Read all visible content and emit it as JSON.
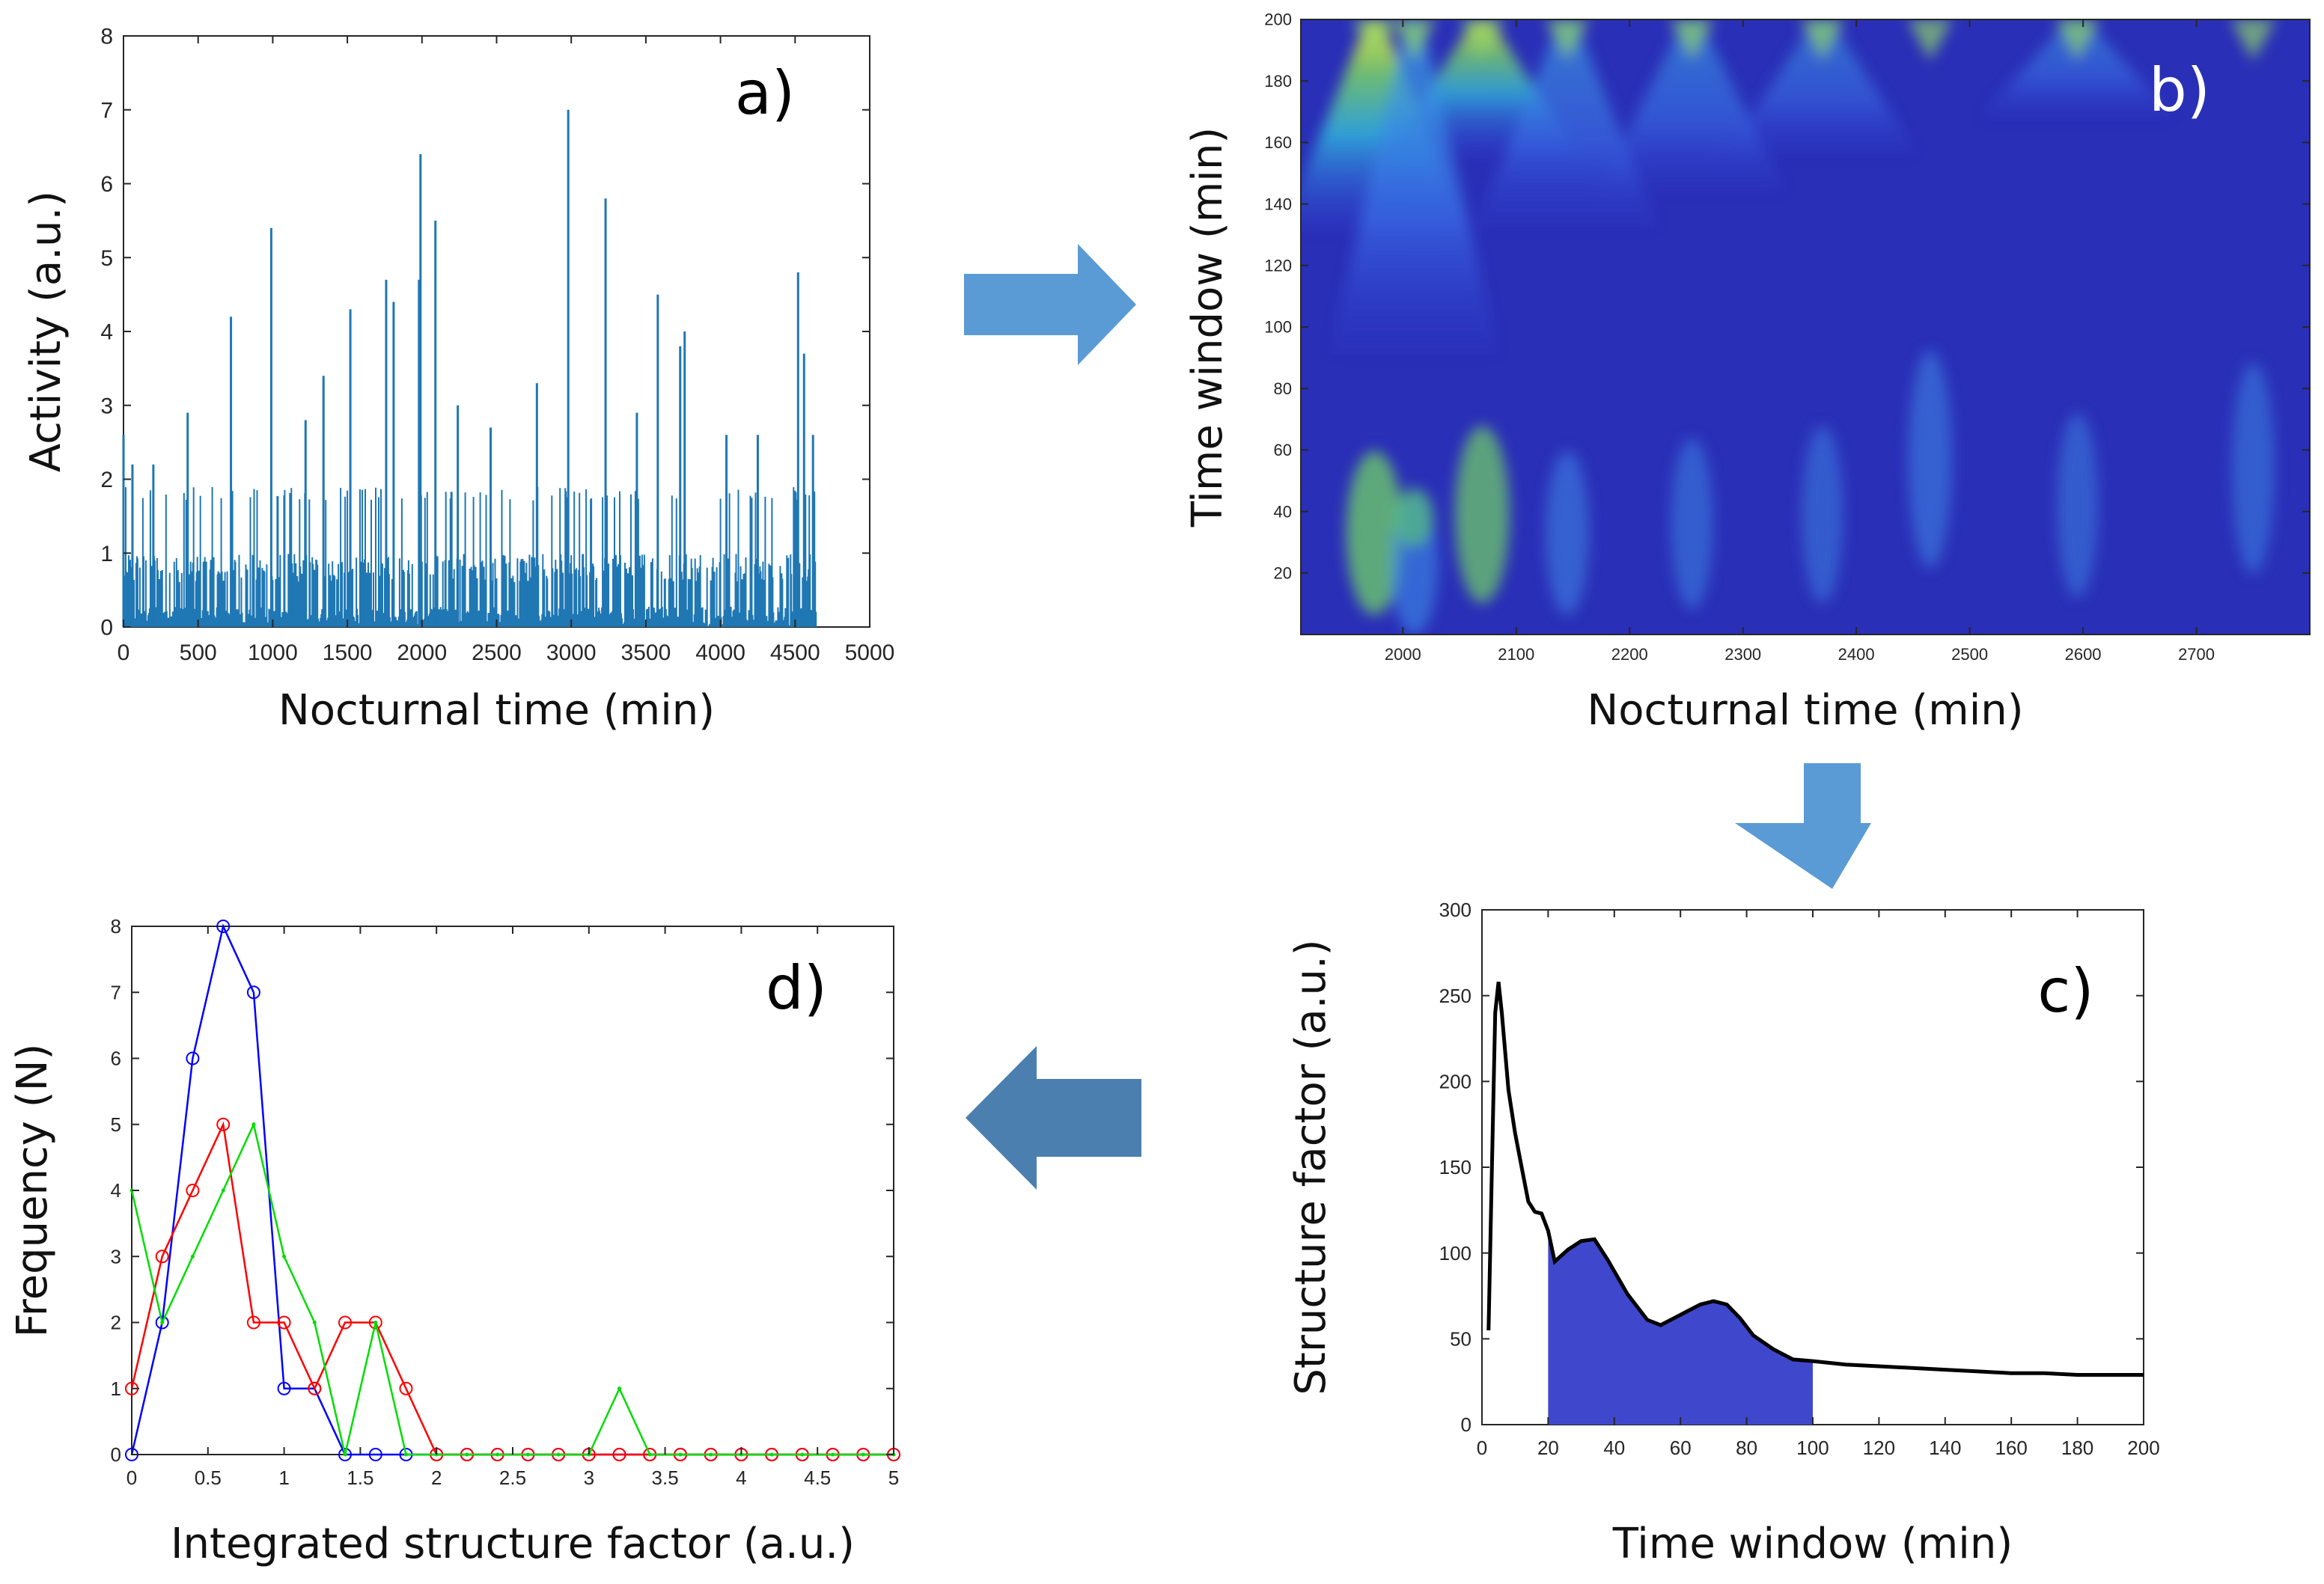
{
  "figure": {
    "arrow_color_light": "#5b9bd5",
    "arrow_color_dark": "#4a7fb0",
    "arrows": [
      {
        "name": "arrow-right-icon",
        "from": "a",
        "to": "b"
      },
      {
        "name": "arrow-down-icon",
        "from": "b",
        "to": "c"
      },
      {
        "name": "arrow-left-icon",
        "from": "c",
        "to": "d"
      }
    ]
  },
  "chart_data": [
    {
      "id": "a",
      "type": "bar",
      "panel_label": "a)",
      "title": "",
      "xlabel": "Nocturnal time (min)",
      "ylabel": "Activity (a.u.)",
      "xlim": [
        0,
        5000
      ],
      "ylim": [
        0,
        8
      ],
      "xticks": [
        0,
        500,
        1000,
        1500,
        2000,
        2500,
        3000,
        3500,
        4000,
        4500,
        5000
      ],
      "yticks": [
        0,
        1,
        2,
        3,
        4,
        5,
        6,
        7,
        8
      ],
      "color": "#1f77b4",
      "series_end": 4640,
      "peaks": [
        {
          "x": 0,
          "y": 2.6
        },
        {
          "x": 60,
          "y": 2.2
        },
        {
          "x": 200,
          "y": 2.2
        },
        {
          "x": 430,
          "y": 2.9
        },
        {
          "x": 720,
          "y": 4.2
        },
        {
          "x": 990,
          "y": 5.4
        },
        {
          "x": 1220,
          "y": 2.8
        },
        {
          "x": 1340,
          "y": 3.4
        },
        {
          "x": 1520,
          "y": 4.3
        },
        {
          "x": 1760,
          "y": 4.7
        },
        {
          "x": 1810,
          "y": 4.4
        },
        {
          "x": 1980,
          "y": 4.7
        },
        {
          "x": 1990,
          "y": 6.4
        },
        {
          "x": 2090,
          "y": 5.5
        },
        {
          "x": 2240,
          "y": 3.0
        },
        {
          "x": 2460,
          "y": 2.7
        },
        {
          "x": 2770,
          "y": 3.3
        },
        {
          "x": 2980,
          "y": 7.0
        },
        {
          "x": 3230,
          "y": 5.8
        },
        {
          "x": 3440,
          "y": 2.9
        },
        {
          "x": 3580,
          "y": 4.5
        },
        {
          "x": 3730,
          "y": 3.8
        },
        {
          "x": 3760,
          "y": 4.0
        },
        {
          "x": 4040,
          "y": 2.6
        },
        {
          "x": 4250,
          "y": 2.6
        },
        {
          "x": 4520,
          "y": 4.8
        },
        {
          "x": 4560,
          "y": 3.7
        },
        {
          "x": 4620,
          "y": 2.6
        }
      ]
    },
    {
      "id": "b",
      "type": "heatmap",
      "panel_label": "b)",
      "title": "",
      "xlabel": "Nocturnal time (min)",
      "ylabel": "Time window (min)",
      "xlim": [
        1910,
        2800
      ],
      "ylim": [
        0,
        200
      ],
      "xticks": [
        2000,
        2100,
        2200,
        2300,
        2400,
        2500,
        2600,
        2700
      ],
      "yticks": [
        20,
        40,
        60,
        80,
        100,
        120,
        140,
        160,
        180,
        200
      ],
      "colormap": "parula",
      "background_color": "#2a2fb8",
      "features": [
        {
          "x": 1975,
          "scale": 55,
          "strength": 1.0
        },
        {
          "x": 2070,
          "scale": 65,
          "strength": 0.9
        },
        {
          "x": 2010,
          "scale": 38,
          "strength": 0.6
        },
        {
          "x": 2145,
          "scale": 55,
          "strength": 0.45
        },
        {
          "x": 2255,
          "scale": 60,
          "strength": 0.4
        },
        {
          "x": 2370,
          "scale": 65,
          "strength": 0.35
        },
        {
          "x": 2465,
          "scale": 95,
          "strength": 0.45
        },
        {
          "x": 2595,
          "scale": 70,
          "strength": 0.35
        },
        {
          "x": 2750,
          "scale": 90,
          "strength": 0.4
        }
      ]
    },
    {
      "id": "c",
      "type": "area",
      "panel_label": "c)",
      "title": "",
      "xlabel": "Time window (min)",
      "ylabel": "Structure factor (a.u.)",
      "xlim": [
        0,
        200
      ],
      "ylim": [
        0,
        300
      ],
      "xticks": [
        0,
        20,
        40,
        60,
        80,
        100,
        120,
        140,
        160,
        180,
        200
      ],
      "yticks": [
        0,
        50,
        100,
        150,
        200,
        250,
        300
      ],
      "line_color": "#000000",
      "fill_color": "#3f48cc",
      "fill_range": [
        20,
        100
      ],
      "x": [
        2,
        3,
        4,
        5,
        6,
        8,
        10,
        12,
        14,
        16,
        18,
        20,
        22,
        26,
        30,
        34,
        38,
        44,
        50,
        54,
        58,
        62,
        66,
        70,
        74,
        78,
        82,
        88,
        94,
        100,
        110,
        120,
        130,
        140,
        150,
        160,
        170,
        180,
        190,
        200
      ],
      "y": [
        55,
        150,
        240,
        258,
        240,
        195,
        170,
        150,
        130,
        124,
        123,
        113,
        95,
        102,
        107,
        108,
        96,
        76,
        61,
        58,
        62,
        66,
        70,
        72,
        70,
        62,
        52,
        44,
        38,
        37,
        35,
        34,
        33,
        32,
        31,
        30,
        30,
        29,
        29,
        29
      ]
    },
    {
      "id": "d",
      "type": "line",
      "panel_label": "d)",
      "title": "",
      "xlabel": "Integrated structure factor (a.u.)",
      "ylabel": "Frequency (N)",
      "xlim": [
        0,
        5
      ],
      "ylim": [
        0,
        8
      ],
      "xticks": [
        0,
        0.5,
        1,
        1.5,
        2,
        2.5,
        3,
        3.5,
        4,
        4.5,
        5
      ],
      "xticklabels": [
        "0",
        "0.5",
        "1",
        "1.5",
        "2",
        "2.5",
        "3",
        "3.5",
        "4",
        "4.5",
        "5"
      ],
      "yticks": [
        0,
        1,
        2,
        3,
        4,
        5,
        6,
        7,
        8
      ],
      "x": [
        0,
        0.2,
        0.4,
        0.6,
        0.8,
        1.0,
        1.2,
        1.4,
        1.6,
        1.8,
        2.0,
        2.2,
        2.4,
        2.6,
        2.8,
        3.0,
        3.2,
        3.4,
        3.6,
        3.8,
        4.0,
        4.2,
        4.4,
        4.6,
        4.8,
        5.0
      ],
      "series": [
        {
          "name": "blue",
          "color": "#0000ff",
          "marker": "circle",
          "values": [
            0,
            2,
            6,
            8,
            7,
            1,
            1,
            0,
            0,
            0,
            0,
            0,
            0,
            0,
            0,
            0,
            0,
            0,
            0,
            0,
            0,
            0,
            0,
            0,
            0,
            0
          ]
        },
        {
          "name": "red",
          "color": "#ff0000",
          "marker": "circle",
          "values": [
            1,
            3,
            4,
            5,
            2,
            2,
            1,
            2,
            2,
            1,
            0,
            0,
            0,
            0,
            0,
            0,
            0,
            0,
            0,
            0,
            0,
            0,
            0,
            0,
            0,
            0
          ]
        },
        {
          "name": "green",
          "color": "#00dd00",
          "marker": "dot",
          "values": [
            4,
            2,
            3,
            4,
            5,
            3,
            2,
            0,
            2,
            0,
            0,
            0,
            0,
            0,
            0,
            0,
            1,
            0,
            0,
            0,
            0,
            0,
            0,
            0,
            0,
            0
          ]
        }
      ]
    }
  ]
}
